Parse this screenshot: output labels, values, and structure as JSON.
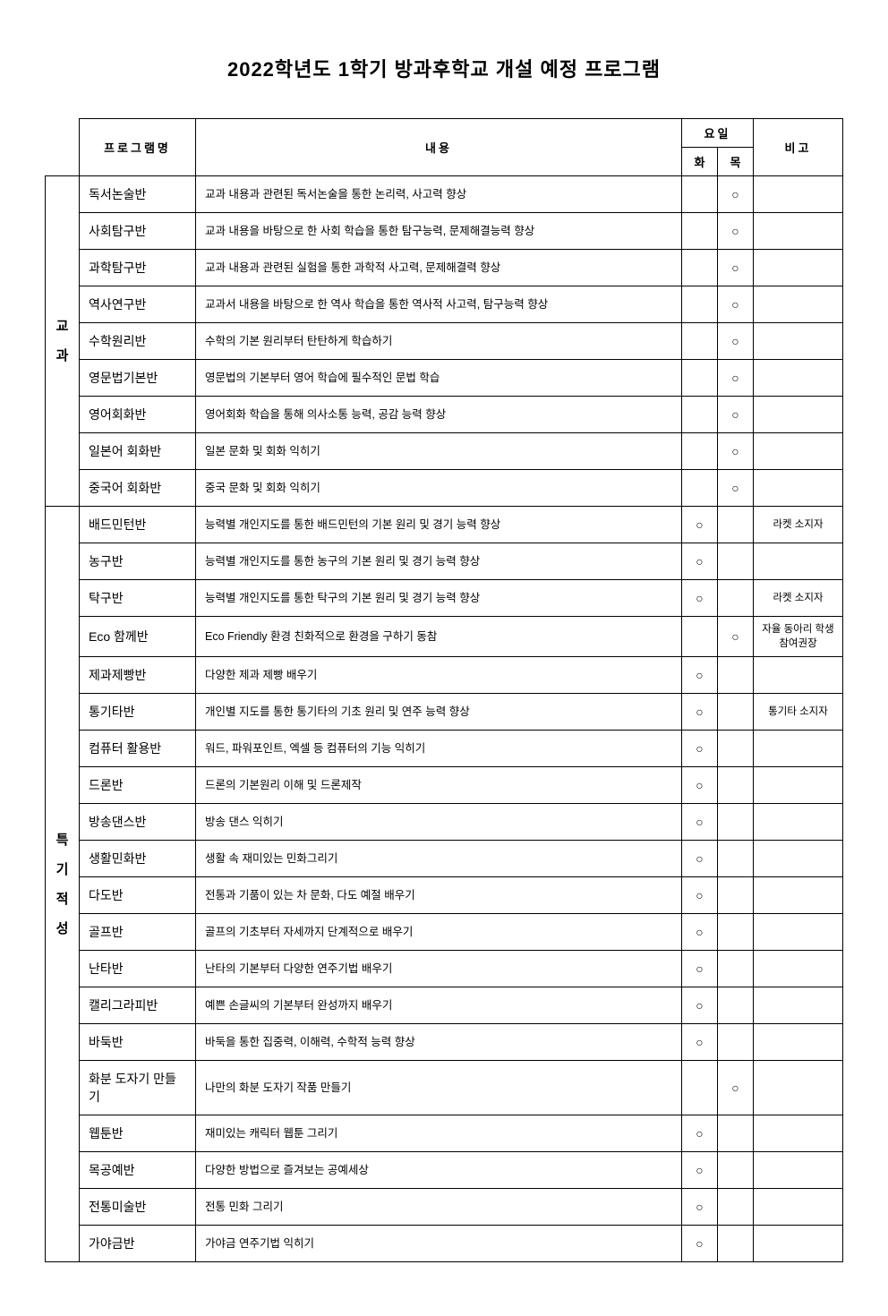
{
  "title": "2022학년도 1학기 방과후학교 개설 예정 프로그램",
  "headers": {
    "program": "프로그램명",
    "content": "내용",
    "days": "요일",
    "tue": "화",
    "thu": "목",
    "note": "비고"
  },
  "mark": "○",
  "categories": [
    {
      "label": "교\n과",
      "rows": [
        {
          "prog": "독서논술반",
          "content": "교과 내용과 관련된 독서논술을 통한 논리력, 사고력 향상",
          "tue": "",
          "thu": "○",
          "note": ""
        },
        {
          "prog": "사회탐구반",
          "content": "교과 내용을 바탕으로 한 사회 학습을 통한 탐구능력, 문제해결능력 향상",
          "tue": "",
          "thu": "○",
          "note": ""
        },
        {
          "prog": "과학탐구반",
          "content": "교과 내용과 관련된 실험을 통한 과학적 사고력, 문제해결력 향상",
          "tue": "",
          "thu": "○",
          "note": ""
        },
        {
          "prog": "역사연구반",
          "content": "교과서 내용을 바탕으로 한 역사 학습을 통한 역사적 사고력, 탐구능력 향상",
          "tue": "",
          "thu": "○",
          "note": ""
        },
        {
          "prog": "수학원리반",
          "content": "수학의 기본 원리부터 탄탄하게 학습하기",
          "tue": "",
          "thu": "○",
          "note": ""
        },
        {
          "prog": "영문법기본반",
          "content": "영문법의 기본부터 영어 학습에 필수적인 문법 학습",
          "tue": "",
          "thu": "○",
          "note": ""
        },
        {
          "prog": "영어회화반",
          "content": "영어회화 학습을 통해 의사소통 능력, 공감 능력 향상",
          "tue": "",
          "thu": "○",
          "note": ""
        },
        {
          "prog": "일본어 회화반",
          "content": "일본 문화 및 회화 익히기",
          "tue": "",
          "thu": "○",
          "note": ""
        },
        {
          "prog": "중국어 회화반",
          "content": "중국 문화 및 회화 익히기",
          "tue": "",
          "thu": "○",
          "note": ""
        }
      ]
    },
    {
      "label": "특\n기\n적\n성",
      "rows": [
        {
          "prog": "배드민턴반",
          "content": "능력별 개인지도를 통한 배드민턴의 기본 원리 및 경기 능력 향상",
          "tue": "○",
          "thu": "",
          "note": "라켓 소지자"
        },
        {
          "prog": "농구반",
          "content": "능력별 개인지도를 통한 농구의 기본 원리 및 경기 능력 향상",
          "tue": "○",
          "thu": "",
          "note": ""
        },
        {
          "prog": "탁구반",
          "content": "능력별 개인지도를 통한 탁구의 기본 원리 및 경기 능력 향상",
          "tue": "○",
          "thu": "",
          "note": "라켓 소지자"
        },
        {
          "prog": "Eco 함께반",
          "content": "Eco Friendly  환경 친화적으로 환경을 구하기 동참",
          "tue": "",
          "thu": "○",
          "note": "자율 동아리 학생 참여권장"
        },
        {
          "prog": "제과제빵반",
          "content": "다양한 제과 제빵 배우기",
          "tue": "○",
          "thu": "",
          "note": ""
        },
        {
          "prog": "통기타반",
          "content": "개인별 지도를 통한 통기타의 기초 원리 및 연주 능력 향상",
          "tue": "○",
          "thu": "",
          "note": "통기타 소지자"
        },
        {
          "prog": "컴퓨터 활용반",
          "content": "워드, 파워포인트, 엑셀 등 컴퓨터의 기능 익히기",
          "tue": "○",
          "thu": "",
          "note": ""
        },
        {
          "prog": "드론반",
          "content": "드론의 기본원리 이해 및 드론제작",
          "tue": "○",
          "thu": "",
          "note": ""
        },
        {
          "prog": "방송댄스반",
          "content": "방송 댄스 익히기",
          "tue": "○",
          "thu": "",
          "note": ""
        },
        {
          "prog": "생활민화반",
          "content": "생활 속 재미있는 민화그리기",
          "tue": "○",
          "thu": "",
          "note": ""
        },
        {
          "prog": "다도반",
          "content": "전통과 기품이 있는 차 문화, 다도 예절 배우기",
          "tue": "○",
          "thu": "",
          "note": ""
        },
        {
          "prog": "골프반",
          "content": "골프의 기초부터 자세까지 단계적으로 배우기",
          "tue": "○",
          "thu": "",
          "note": ""
        },
        {
          "prog": "난타반",
          "content": "난타의 기본부터 다양한 연주기법 배우기",
          "tue": "○",
          "thu": "",
          "note": ""
        },
        {
          "prog": "캘리그라피반",
          "content": "예쁜 손글씨의 기본부터 완성까지 배우기",
          "tue": "○",
          "thu": "",
          "note": ""
        },
        {
          "prog": "바둑반",
          "content": "바둑을 통한 집중력, 이해력, 수학적 능력 향상",
          "tue": "○",
          "thu": "",
          "note": ""
        },
        {
          "prog": "화분 도자기 만들기",
          "content": "나만의 화분 도자기 작품 만들기",
          "tue": "",
          "thu": "○",
          "note": ""
        },
        {
          "prog": "웹툰반",
          "content": "재미있는 캐릭터 웹툰 그리기",
          "tue": "○",
          "thu": "",
          "note": ""
        },
        {
          "prog": "목공예반",
          "content": "다양한 방법으로 즐겨보는 공예세상",
          "tue": "○",
          "thu": "",
          "note": ""
        },
        {
          "prog": "전통미술반",
          "content": "전통 민화 그리기",
          "tue": "○",
          "thu": "",
          "note": ""
        },
        {
          "prog": "가야금반",
          "content": "가야금 연주기법 익히기",
          "tue": "○",
          "thu": "",
          "note": ""
        }
      ]
    }
  ]
}
